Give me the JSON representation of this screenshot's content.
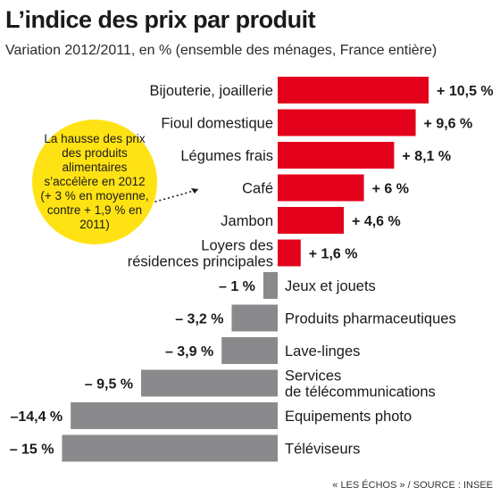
{
  "header": {
    "title": "L’indice des prix par produit",
    "subtitle": "Variation 2012/2011, en % (ensemble des ménages, France entière)"
  },
  "callout": {
    "text": "La hausse des prix des produits alimentaires s’accélère en 2012 (+ 3 % en moyenne, contre + 1,9 % en 2011)"
  },
  "footer": {
    "source": "« LES ÉCHOS » / SOURCE : INSEE"
  },
  "chart_data": {
    "type": "bar",
    "orientation": "horizontal",
    "categories": [
      "Bijouterie, joaillerie",
      "Fioul domestique",
      "Légumes frais",
      "Café",
      "Jambon",
      "Loyers des\nrésidences principales",
      "Jeux et jouets",
      "Produits pharmaceutiques",
      "Lave-linges",
      "Services\nde télécommunications",
      "Equipements photo",
      "Téléviseurs"
    ],
    "values": [
      10.5,
      9.6,
      8.1,
      6,
      4.6,
      1.6,
      -1,
      -3.2,
      -3.9,
      -9.5,
      -14.4,
      -15
    ],
    "value_labels": [
      "+ 10,5 %",
      "+ 9,6 %",
      "+ 8,1 %",
      "+ 6 %",
      "+ 4,6 %",
      "+ 1,6 %",
      "– 1 %",
      "– 3,2 %",
      "– 3,9 %",
      "– 9,5 %",
      "–14,4 %",
      "– 15 %"
    ],
    "colors": {
      "positive": "#e3001b",
      "negative": "#8a8a8c"
    },
    "legend": "none",
    "grid": false
  }
}
